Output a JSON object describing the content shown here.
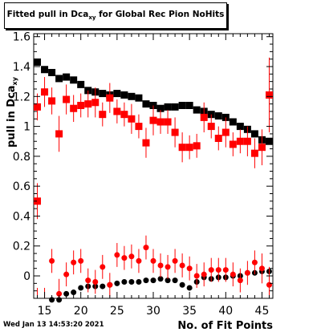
{
  "title": {
    "main": "Fitted pull in Dca",
    "sub": "xy",
    "rest": " for Global Rec Pion NoHits"
  },
  "timestamp": "Wed Jan 13 14:53:20 2021",
  "chart_data": {
    "type": "scatter",
    "title": "Fitted pull in Dca_xy for Global Rec Pion NoHits",
    "xlabel": "No. of Fit Points",
    "ylabel": "pull in Dca_xy",
    "xlim": [
      13.5,
      46.5
    ],
    "ylim": [
      -0.15,
      1.62
    ],
    "x_ticks": [
      15,
      20,
      25,
      30,
      35,
      40,
      45
    ],
    "y_ticks": [
      0,
      0.2,
      0.4,
      0.6,
      0.8,
      1,
      1.2,
      1.4,
      1.6
    ],
    "y_tick_labels": [
      "0",
      "0.2",
      "0.4",
      "0.6",
      "0.8",
      "1",
      "1.2",
      "1.4",
      "1.6"
    ],
    "grid": false,
    "legend": "none",
    "colors": {
      "black_series": "#000000",
      "red_series": "#ff0000"
    },
    "x": [
      14,
      15,
      16,
      17,
      18,
      19,
      20,
      21,
      22,
      23,
      24,
      25,
      26,
      27,
      28,
      29,
      30,
      31,
      32,
      33,
      34,
      35,
      36,
      37,
      38,
      39,
      40,
      41,
      42,
      43,
      44,
      45,
      46
    ],
    "series": [
      {
        "values": [
          1.43,
          1.38,
          1.36,
          1.32,
          1.33,
          1.31,
          1.28,
          1.24,
          1.23,
          1.22,
          1.21,
          1.22,
          1.21,
          1.2,
          1.19,
          1.15,
          1.14,
          1.12,
          1.13,
          1.13,
          1.14,
          1.14,
          1.11,
          1.1,
          1.08,
          1.07,
          1.06,
          1.03,
          1.0,
          0.98,
          0.95,
          0.91,
          0.9
        ],
        "marker": "square",
        "color": "#000000"
      },
      {
        "values": [
          1.13,
          1.23,
          1.17,
          0.95,
          1.18,
          1.12,
          1.14,
          1.15,
          1.16,
          1.08,
          1.19,
          1.1,
          1.08,
          1.05,
          1.0,
          0.89,
          1.04,
          1.03,
          1.03,
          0.96,
          0.86,
          0.86,
          0.87,
          1.06,
          1.0,
          0.92,
          0.96,
          0.88,
          0.9,
          0.9,
          0.82,
          0.86,
          1.21
        ],
        "errors": [
          0.09,
          0.1,
          0.09,
          0.12,
          0.1,
          0.09,
          0.08,
          0.09,
          0.1,
          0.08,
          0.1,
          0.08,
          0.08,
          0.1,
          0.08,
          0.1,
          0.1,
          0.08,
          0.08,
          0.1,
          0.1,
          0.08,
          0.08,
          0.1,
          0.08,
          0.08,
          0.1,
          0.08,
          0.08,
          0.1,
          0.1,
          0.12,
          0.25
        ],
        "marker": "square",
        "color": "#ff0000"
      },
      {
        "values": [
          0.5,
          null,
          null,
          null,
          null,
          null,
          null,
          null,
          null,
          null,
          null,
          null,
          null,
          null,
          null,
          null,
          null,
          null,
          null,
          null,
          null,
          null,
          null,
          null,
          null,
          null,
          null,
          null,
          null,
          null,
          null,
          null,
          null
        ],
        "errors": [
          0.12
        ],
        "marker": "square",
        "color": "#ff0000"
      },
      {
        "values": [
          -0.2,
          -0.17,
          -0.16,
          -0.16,
          -0.12,
          -0.11,
          -0.08,
          -0.07,
          -0.07,
          -0.07,
          -0.06,
          -0.05,
          -0.04,
          -0.04,
          -0.04,
          -0.03,
          -0.03,
          -0.02,
          -0.03,
          -0.03,
          -0.06,
          -0.08,
          -0.04,
          -0.01,
          -0.02,
          -0.01,
          -0.01,
          0.0,
          0.0,
          0.02,
          0.02,
          0.03,
          0.03
        ],
        "marker": "circle",
        "color": "#000000"
      },
      {
        "values": [
          -0.18,
          -0.18,
          0.1,
          -0.12,
          0.01,
          0.09,
          0.1,
          -0.03,
          -0.04,
          0.06,
          -0.06,
          0.14,
          0.12,
          0.13,
          0.1,
          0.19,
          0.1,
          0.07,
          0.06,
          0.1,
          0.07,
          0.05,
          0.0,
          0.01,
          0.04,
          0.04,
          0.04,
          0.01,
          -0.03,
          0.02,
          0.09,
          0.05,
          -0.06
        ],
        "errors": [
          0.1,
          0.1,
          0.08,
          0.1,
          0.08,
          0.08,
          0.08,
          0.08,
          0.08,
          0.08,
          0.08,
          0.08,
          0.08,
          0.08,
          0.08,
          0.08,
          0.08,
          0.08,
          0.08,
          0.08,
          0.08,
          0.08,
          0.08,
          0.08,
          0.08,
          0.08,
          0.08,
          0.08,
          0.08,
          0.08,
          0.08,
          0.1,
          0.12
        ],
        "marker": "circle",
        "color": "#ff0000"
      }
    ]
  }
}
